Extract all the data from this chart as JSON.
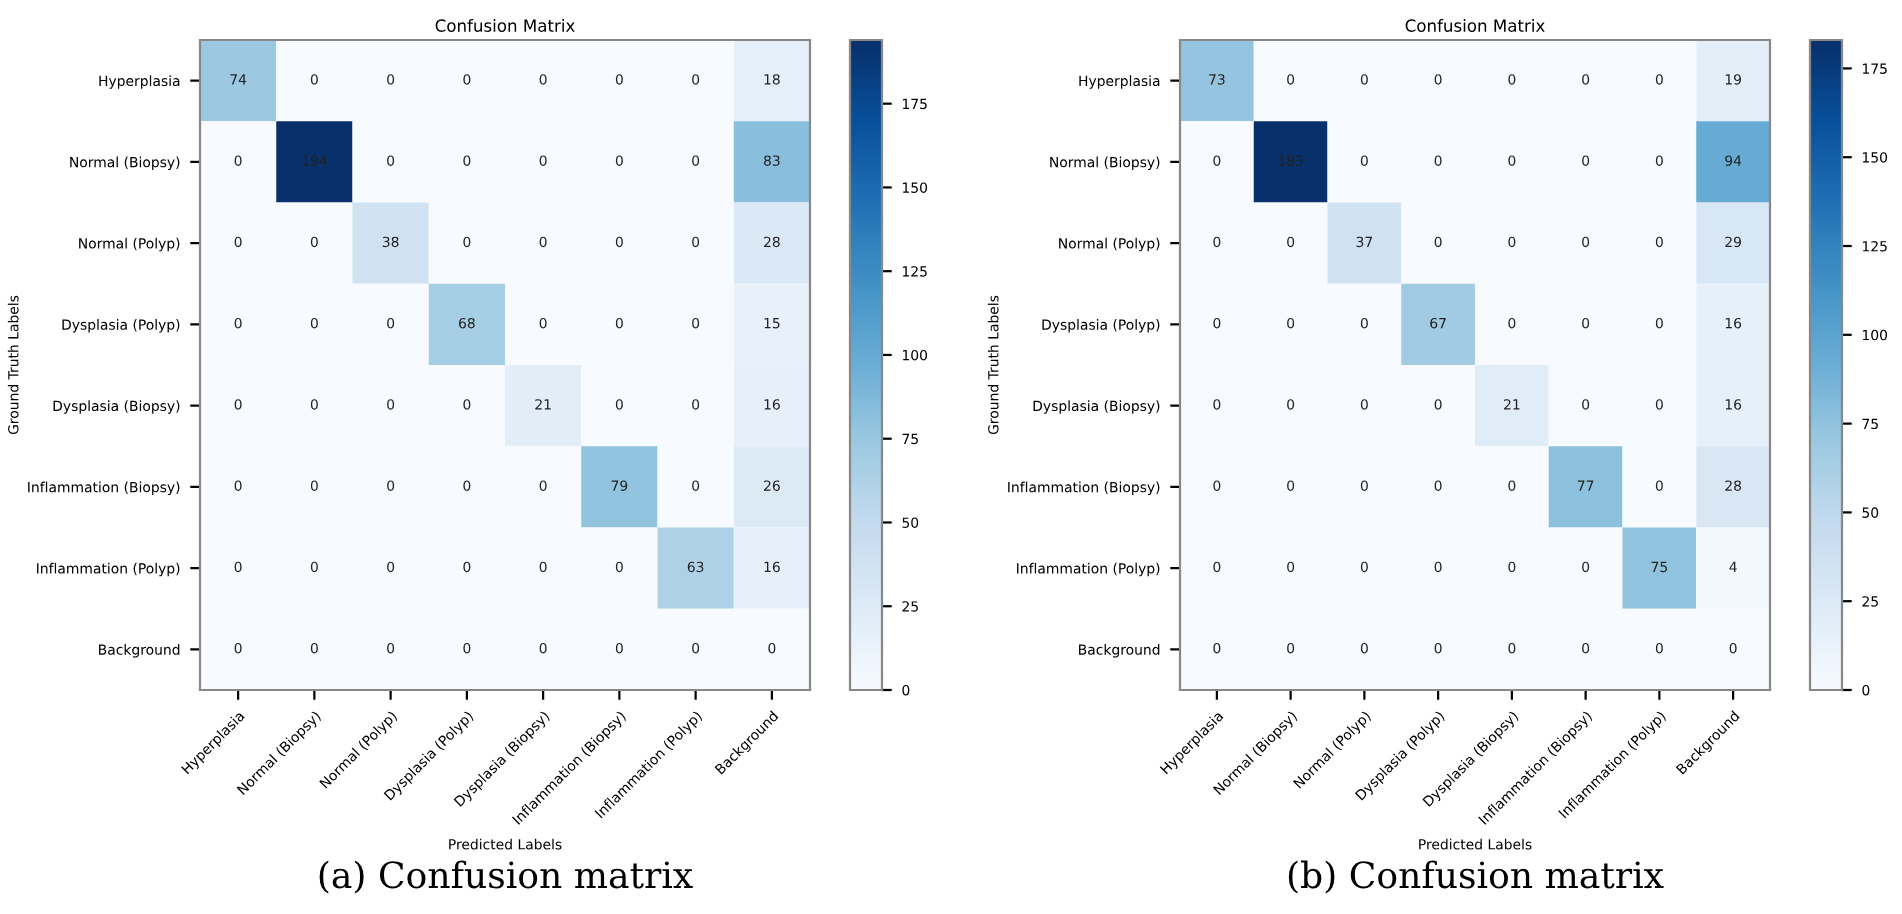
{
  "chart_data": [
    {
      "type": "heatmap",
      "title": "Confusion Matrix",
      "xlabel": "Predicted Labels",
      "ylabel": "Ground Truth Labels",
      "categories": [
        "Hyperplasia",
        "Normal (Biopsy)",
        "Normal (Polyp)",
        "Dysplasia (Polyp)",
        "Dysplasia (Biopsy)",
        "Inflammation (Biopsy)",
        "Inflammation (Polyp)",
        "Background"
      ],
      "y_categories": [
        "Hyperplasia",
        "Normal (Biopsy)",
        "Normal (Polyp)",
        "Dysplasia (Polyp)",
        "Dysplasia (Biopsy)",
        "Inflammation (Biopsy)",
        "Inflammation (Polyp)",
        "Background"
      ],
      "cells": [
        [
          74,
          0,
          0,
          0,
          0,
          0,
          0,
          18
        ],
        [
          0,
          194,
          0,
          0,
          0,
          0,
          0,
          83
        ],
        [
          0,
          0,
          38,
          0,
          0,
          0,
          0,
          28
        ],
        [
          0,
          0,
          0,
          68,
          0,
          0,
          0,
          15
        ],
        [
          0,
          0,
          0,
          0,
          21,
          0,
          0,
          16
        ],
        [
          0,
          0,
          0,
          0,
          0,
          79,
          0,
          26
        ],
        [
          0,
          0,
          0,
          0,
          0,
          0,
          63,
          16
        ],
        [
          0,
          0,
          0,
          0,
          0,
          0,
          0,
          0
        ]
      ],
      "clim": [
        0,
        194
      ],
      "cticks": [
        0,
        25,
        50,
        75,
        100,
        125,
        150,
        175
      ],
      "data_labels": true,
      "annotations": [
        "(a) Confusion matrix"
      ]
    },
    {
      "type": "heatmap",
      "title": "Confusion Matrix",
      "xlabel": "Predicted Labels",
      "ylabel": "Ground Truth Labels",
      "categories": [
        "Hyperplasia",
        "Normal (Biopsy)",
        "Normal (Polyp)",
        "Dysplasia (Polyp)",
        "Dysplasia (Biopsy)",
        "Inflammation (Biopsy)",
        "Inflammation (Polyp)",
        "Background"
      ],
      "y_categories": [
        "Hyperplasia",
        "Normal (Biopsy)",
        "Normal (Polyp)",
        "Dysplasia (Polyp)",
        "Dysplasia (Biopsy)",
        "Inflammation (Biopsy)",
        "Inflammation (Polyp)",
        "Background"
      ],
      "cells": [
        [
          73,
          0,
          0,
          0,
          0,
          0,
          0,
          19
        ],
        [
          0,
          183,
          0,
          0,
          0,
          0,
          0,
          94
        ],
        [
          0,
          0,
          37,
          0,
          0,
          0,
          0,
          29
        ],
        [
          0,
          0,
          0,
          67,
          0,
          0,
          0,
          16
        ],
        [
          0,
          0,
          0,
          0,
          21,
          0,
          0,
          16
        ],
        [
          0,
          0,
          0,
          0,
          0,
          77,
          0,
          28
        ],
        [
          0,
          0,
          0,
          0,
          0,
          0,
          75,
          4
        ],
        [
          0,
          0,
          0,
          0,
          0,
          0,
          0,
          0
        ]
      ],
      "clim": [
        0,
        183
      ],
      "cticks": [
        0,
        25,
        50,
        75,
        100,
        125,
        150,
        175
      ],
      "data_labels": true,
      "annotations": [
        "(b) Confusion matrix"
      ]
    }
  ]
}
